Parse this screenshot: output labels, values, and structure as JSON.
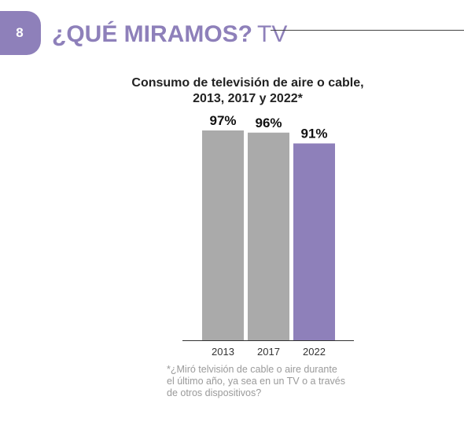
{
  "header": {
    "page_number": "8",
    "title_bold": "¿QUÉ MIRAMOS?",
    "title_light": "TV"
  },
  "colors": {
    "accent": "#8e80ba",
    "bar_default": "#aaaaaa",
    "bar_highlight": "#8e80ba",
    "axis": "#333333",
    "footnote": "#9a9a9a"
  },
  "chart_data": {
    "type": "bar",
    "title_lines": [
      "Consumo de televisión de aire o cable,",
      "2013, 2017 y 2022*"
    ],
    "categories": [
      "2013",
      "2017",
      "2022"
    ],
    "values": [
      97,
      96,
      91
    ],
    "value_labels": [
      "97%",
      "96%",
      "91%"
    ],
    "highlight": [
      false,
      false,
      true
    ],
    "ylim": [
      0,
      100
    ],
    "xlabel": "",
    "ylabel": "",
    "grid": false,
    "legend": false
  },
  "footnote": [
    "*¿Miró telvisión de cable o aire durante",
    "el último año, ya sea en un TV o a través",
    "de otros dispositivos?"
  ]
}
